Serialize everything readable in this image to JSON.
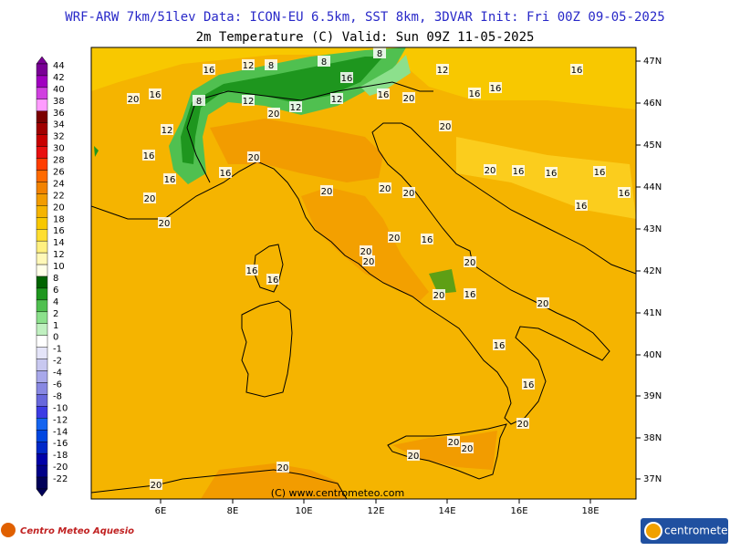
{
  "header": {
    "title": "WRF-ARW 7km/51lev  Data: ICON-EU 6.5km, SST 8km, 3DVAR  Init: Fri 00Z 09-05-2025",
    "subtitle": "2m Temperature (C)  Valid: Sun 09Z 11-05-2025"
  },
  "legend": {
    "levels": [
      44,
      42,
      40,
      38,
      36,
      34,
      32,
      30,
      28,
      26,
      24,
      22,
      20,
      18,
      16,
      14,
      12,
      10,
      8,
      6,
      4,
      2,
      1,
      0,
      -1,
      -2,
      -4,
      -6,
      -8,
      -10,
      -12,
      -14,
      -16,
      -18,
      -20,
      -22
    ],
    "colors": [
      "#7a0096",
      "#a000c0",
      "#d040e0",
      "#ff9cff",
      "#7a0000",
      "#a00000",
      "#c80000",
      "#e81010",
      "#ff3c00",
      "#ff6a00",
      "#f28200",
      "#f29c00",
      "#f5b400",
      "#f8c800",
      "#ffde30",
      "#fff080",
      "#fff8b8",
      "#ffffe8",
      "#006400",
      "#1e961e",
      "#50c050",
      "#8ce08c",
      "#c0f0c0",
      "#ffffff",
      "#e4e4f8",
      "#c8c8f0",
      "#a8a8ea",
      "#8888e2",
      "#6868dc",
      "#3c3ce4",
      "#1464f0",
      "#0046e0",
      "#0028c8",
      "#0000a8",
      "#000088",
      "#000058"
    ]
  },
  "axes": {
    "lon_labels": [
      "6E",
      "8E",
      "10E",
      "12E",
      "14E",
      "16E",
      "18E"
    ],
    "lat_labels": [
      "47N",
      "46N",
      "45N",
      "44N",
      "43N",
      "42N",
      "41N",
      "40N",
      "39N",
      "38N",
      "37N"
    ]
  },
  "contour_labels": [
    16,
    12,
    8,
    8,
    8,
    12,
    16,
    20,
    16,
    8,
    12,
    20,
    12,
    12,
    16,
    16,
    20,
    16,
    16,
    12,
    16,
    16,
    16,
    20,
    20,
    20,
    20,
    20,
    20,
    20,
    20,
    16,
    16,
    16,
    16,
    16,
    20,
    16,
    20,
    20,
    20,
    16,
    16,
    20,
    16,
    20,
    16,
    16,
    20,
    20,
    20,
    20,
    20,
    20
  ],
  "copyright": "(C) www.centrometeo.com",
  "logos": {
    "left": "Centro Meteo Aquesio",
    "right": "centrometeo"
  }
}
